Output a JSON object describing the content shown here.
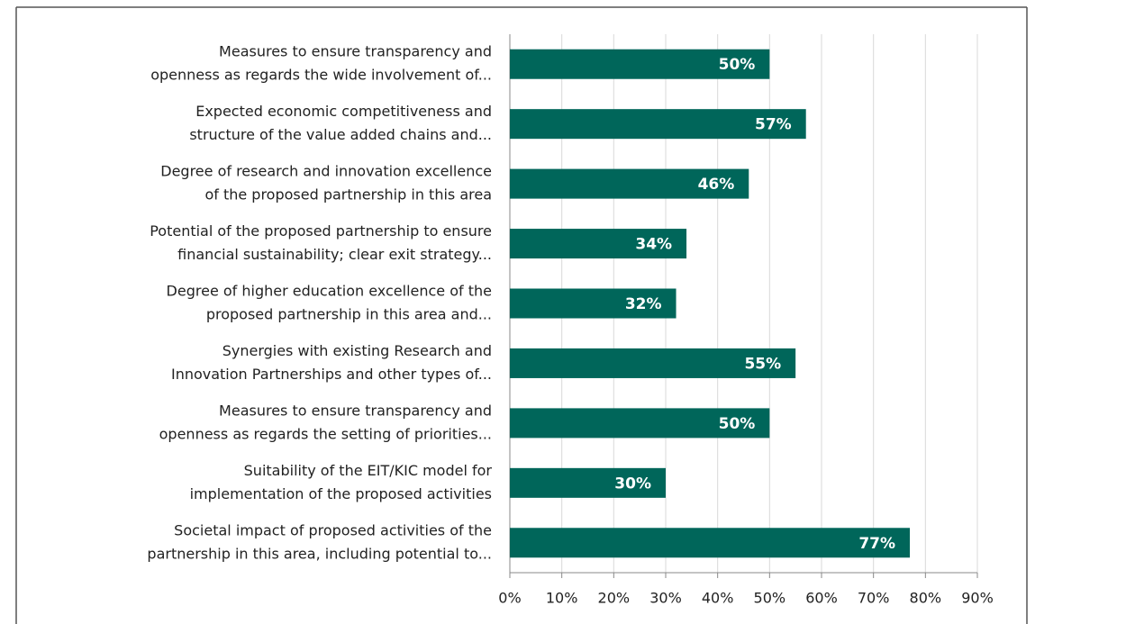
{
  "chart_data": {
    "type": "barh",
    "categories": [
      [
        "Measures to ensure transparency and",
        "openness as regards the wide involvement of..."
      ],
      [
        "Expected economic competitiveness and",
        "structure of the value added chains and..."
      ],
      [
        "Degree of research and innovation excellence",
        "of the proposed partnership in this area"
      ],
      [
        "Potential of the proposed partnership to ensure",
        "financial sustainability; clear exit strategy..."
      ],
      [
        "Degree of higher education excellence of the",
        "proposed partnership in this area and..."
      ],
      [
        "Synergies with existing Research and",
        "Innovation Partnerships and other types of..."
      ],
      [
        "Measures to ensure transparency and",
        "openness as regards the setting of priorities..."
      ],
      [
        "Suitability of the EIT/KIC model for",
        "implementation of the proposed activities"
      ],
      [
        "Societal impact of proposed activities of the",
        "partnership in this area, including potential to..."
      ]
    ],
    "values": [
      50,
      57,
      46,
      34,
      32,
      55,
      50,
      30,
      77
    ],
    "value_labels": [
      "50%",
      "57%",
      "46%",
      "34%",
      "32%",
      "55%",
      "50%",
      "30%",
      "77%"
    ],
    "color": "#00665a",
    "xlim": [
      0,
      90
    ],
    "xticks": [
      {
        "value": 0,
        "label": "0%"
      },
      {
        "value": 10,
        "label": "10%"
      },
      {
        "value": 20,
        "label": "20%"
      },
      {
        "value": 30,
        "label": "30%"
      },
      {
        "value": 40,
        "label": "40%"
      },
      {
        "value": 50,
        "label": "50%"
      },
      {
        "value": 60,
        "label": "60%"
      },
      {
        "value": 70,
        "label": "70%"
      },
      {
        "value": 80,
        "label": "80%"
      },
      {
        "value": 90,
        "label": "90%"
      }
    ],
    "grid": true
  }
}
